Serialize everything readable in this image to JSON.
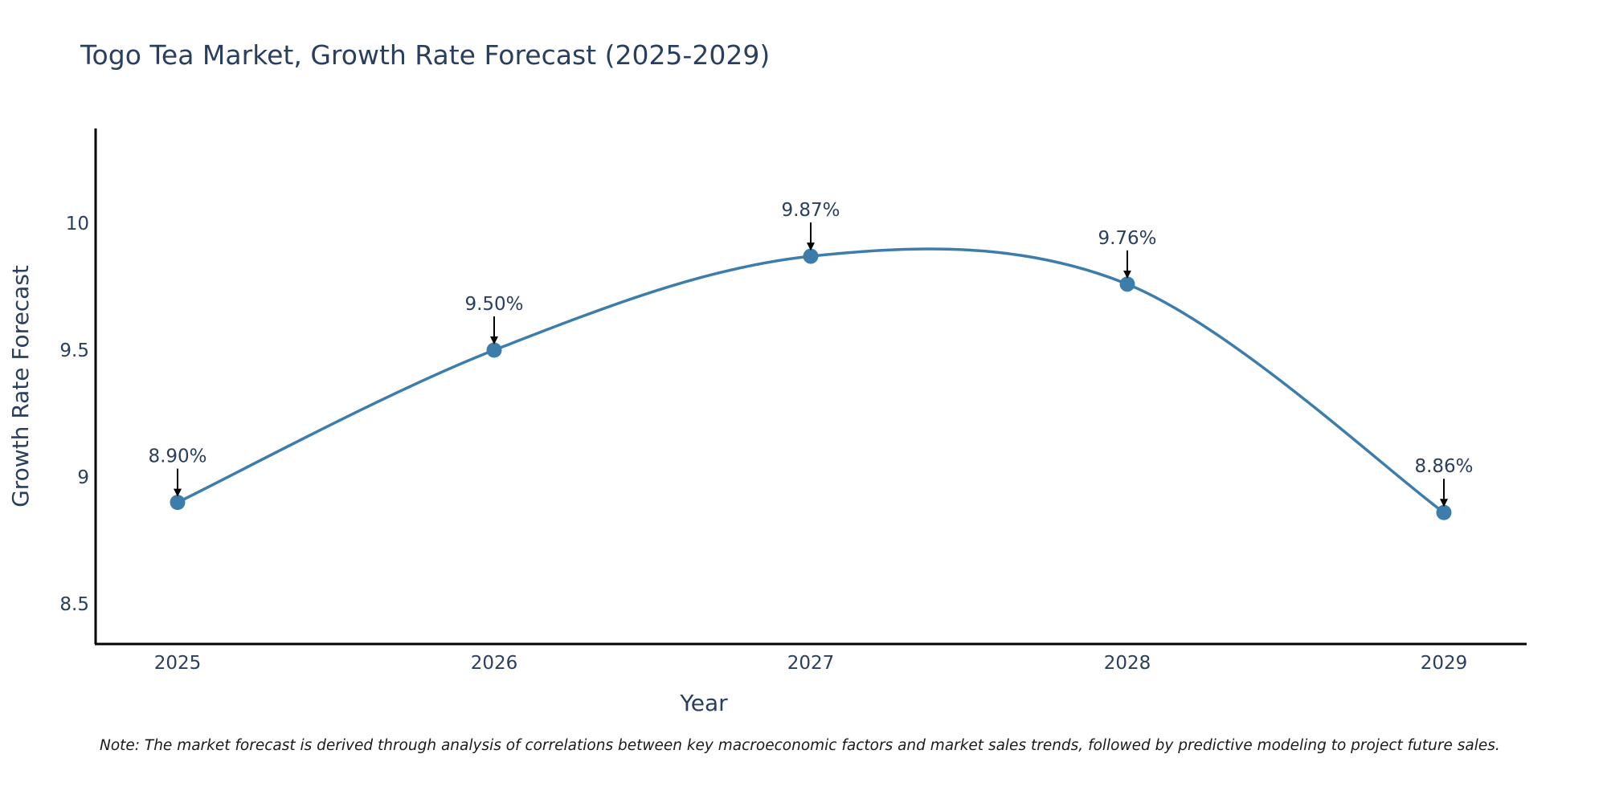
{
  "chart_data": {
    "type": "line",
    "title": "Togo Tea Market, Growth Rate Forecast (2025-2029)",
    "xlabel": "Year",
    "ylabel": "Growth Rate Forecast",
    "categories": [
      "2025",
      "2026",
      "2027",
      "2028",
      "2029"
    ],
    "series": [
      {
        "name": "Growth Rate Forecast",
        "values": [
          8.9,
          9.5,
          9.87,
          9.76,
          8.86
        ]
      }
    ],
    "data_labels": [
      "8.90%",
      "9.50%",
      "9.87%",
      "9.76%",
      "8.86%"
    ],
    "y_ticks": [
      8.5,
      9,
      9.5,
      10
    ],
    "y_tick_labels": [
      "8.5",
      "9",
      "9.5",
      "10"
    ],
    "ylim": [
      8.35,
      10.37
    ],
    "grid": false,
    "line_color": "#3d7dab",
    "marker_color": "#3d7dab"
  },
  "note": "Note: The market forecast is derived through analysis of correlations between key macroeconomic factors and market sales trends, followed by predictive modeling to project future sales."
}
